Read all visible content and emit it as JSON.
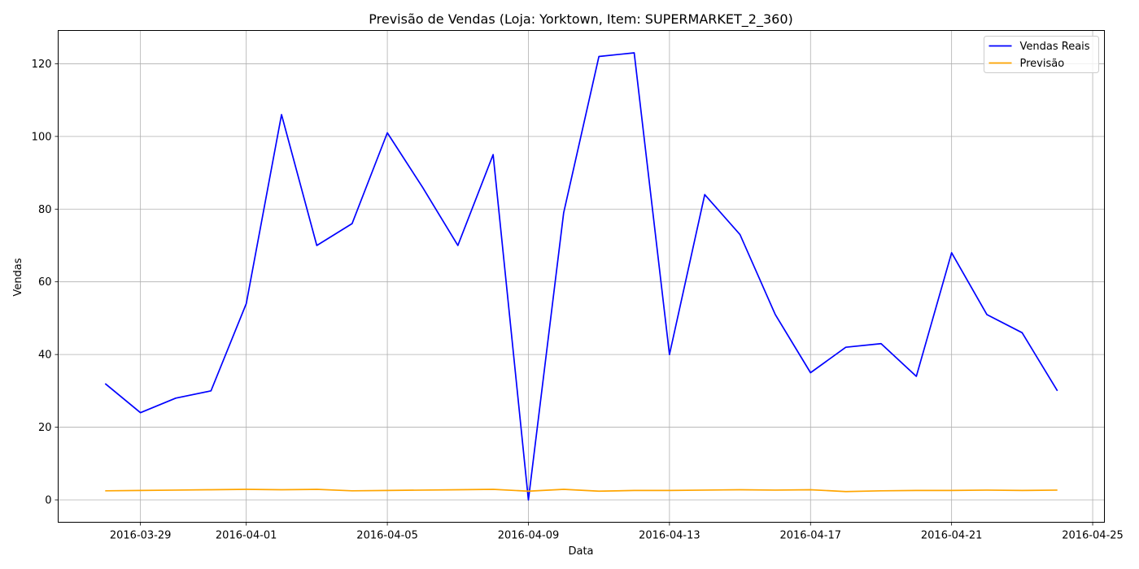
{
  "chart_data": {
    "type": "line",
    "title": "Previsão de Vendas (Loja: Yorktown, Item: SUPERMARKET_2_360)",
    "xlabel": "Data",
    "ylabel": "Vendas",
    "x": [
      "2016-03-28",
      "2016-03-29",
      "2016-03-30",
      "2016-03-31",
      "2016-04-01",
      "2016-04-02",
      "2016-04-03",
      "2016-04-04",
      "2016-04-05",
      "2016-04-06",
      "2016-04-07",
      "2016-04-08",
      "2016-04-09",
      "2016-04-10",
      "2016-04-11",
      "2016-04-12",
      "2016-04-13",
      "2016-04-14",
      "2016-04-15",
      "2016-04-16",
      "2016-04-17",
      "2016-04-18",
      "2016-04-19",
      "2016-04-20",
      "2016-04-21",
      "2016-04-22",
      "2016-04-23",
      "2016-04-24"
    ],
    "xlim": [
      "2016-03-26T16:00",
      "2016-04-25T08:00"
    ],
    "ylim": [
      -6.15,
      129.15
    ],
    "xticks": [
      "2016-03-29",
      "2016-04-01",
      "2016-04-05",
      "2016-04-09",
      "2016-04-13",
      "2016-04-17",
      "2016-04-21",
      "2016-04-25"
    ],
    "yticks": [
      0,
      20,
      40,
      60,
      80,
      100,
      120
    ],
    "grid": true,
    "legend_position": "top-right",
    "series": [
      {
        "name": "Vendas Reais",
        "color": "#0000ff",
        "values": [
          32,
          24,
          28,
          30,
          54,
          106,
          70,
          76,
          101,
          86,
          70,
          95,
          0,
          79,
          122,
          123,
          40,
          84,
          73,
          51,
          35,
          42,
          43,
          34,
          68,
          51,
          46,
          30
        ]
      },
      {
        "name": "Previsão",
        "color": "#ffa500",
        "values": [
          2.5,
          2.6,
          2.7,
          2.8,
          2.9,
          2.8,
          2.9,
          2.5,
          2.6,
          2.7,
          2.8,
          2.9,
          2.4,
          2.9,
          2.4,
          2.6,
          2.6,
          2.7,
          2.8,
          2.7,
          2.8,
          2.3,
          2.5,
          2.6,
          2.6,
          2.7,
          2.6,
          2.7
        ]
      }
    ]
  }
}
